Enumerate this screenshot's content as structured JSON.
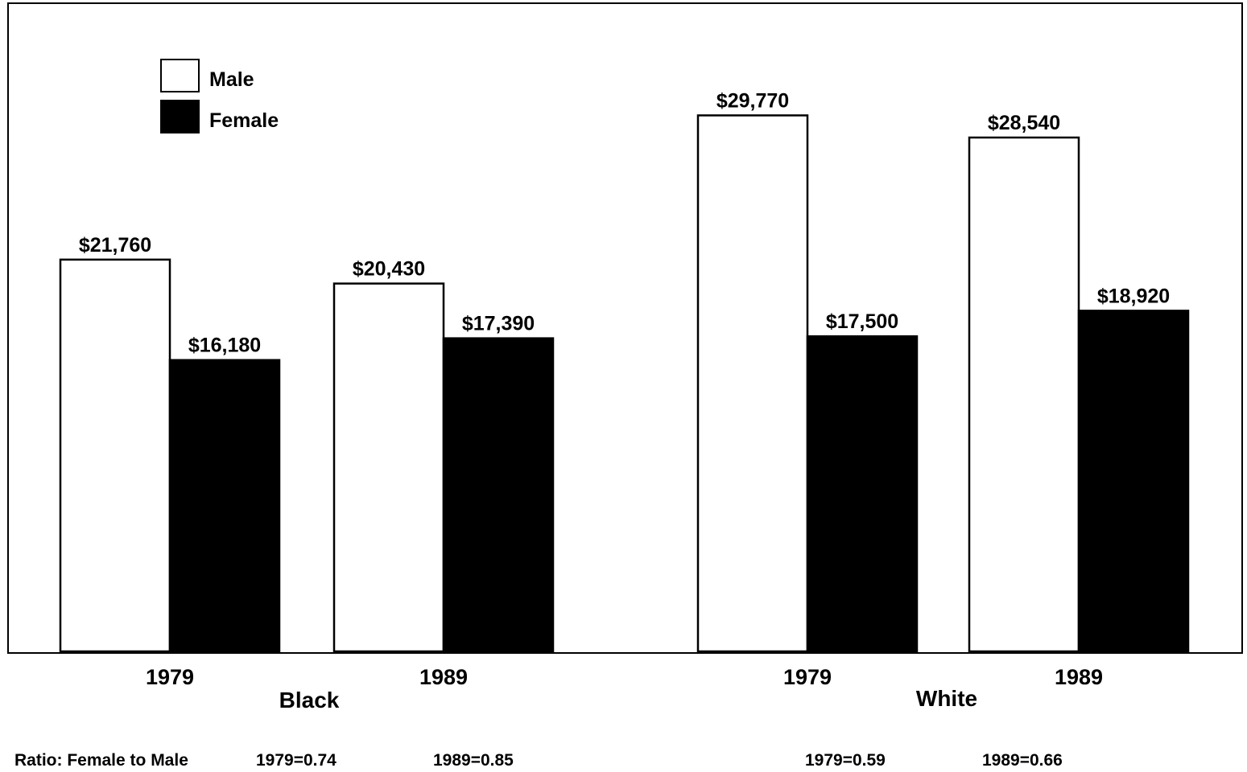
{
  "chart_data": {
    "type": "bar",
    "categories": [
      "1979",
      "1989",
      "1979",
      "1989"
    ],
    "groups": [
      {
        "label": "Black",
        "years": [
          "1979",
          "1989"
        ]
      },
      {
        "label": "White",
        "years": [
          "1979",
          "1989"
        ]
      }
    ],
    "series": [
      {
        "name": "Male",
        "color": "#ffffff",
        "values": [
          21760,
          20430,
          29770,
          28540
        ],
        "labels": [
          "$21,760",
          "$20,430",
          "$29,770",
          "$28,540"
        ]
      },
      {
        "name": "Female",
        "color": "#000000",
        "values": [
          16180,
          17390,
          17500,
          18920
        ],
        "labels": [
          "$16,180",
          "$17,390",
          "$17,500",
          "$18,920"
        ]
      }
    ],
    "ylim": [
      0,
      36000
    ],
    "grid": false,
    "legend_position": "top-left",
    "title": "",
    "xlabel": "",
    "ylabel": ""
  },
  "ratio": {
    "label": "Ratio: Female to Male",
    "values": [
      "1979=0.74",
      "1989=0.85",
      "1979=0.59",
      "1989=0.66"
    ]
  }
}
